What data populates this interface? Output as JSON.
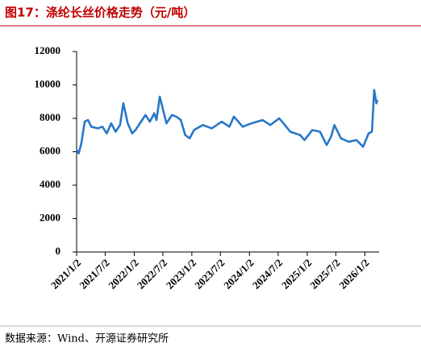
{
  "chart_data": {
    "type": "line",
    "title": "图17：涤纶长丝价格走势（元/吨）",
    "source": "数据来源：Wind、开源证券研究所",
    "x": [
      "2021/1/4",
      "2021/1/15",
      "2021/2/1",
      "2021/2/22",
      "2021/3/15",
      "2021/4/5",
      "2021/5/17",
      "2021/6/14",
      "2021/7/12",
      "2021/8/9",
      "2021/9/6",
      "2021/10/4",
      "2021/10/25",
      "2021/11/22",
      "2021/12/20",
      "2022/1/10",
      "2022/2/14",
      "2022/3/14",
      "2022/4/11",
      "2022/5/9",
      "2022/5/23",
      "2022/6/13",
      "2022/7/4",
      "2022/7/25",
      "2022/8/29",
      "2022/9/26",
      "2022/10/24",
      "2022/11/21",
      "2022/12/19",
      "2023/1/16",
      "2023/3/13",
      "2023/5/8",
      "2023/7/10",
      "2023/8/28",
      "2023/9/25",
      "2023/11/20",
      "2024/1/15",
      "2024/3/25",
      "2024/5/13",
      "2024/7/8",
      "2024/8/5",
      "2024/9/16",
      "2024/11/18",
      "2024/12/16",
      "2025/2/3",
      "2025/3/24",
      "2025/5/5",
      "2025/6/2",
      "2025/6/23",
      "2025/8/4",
      "2025/9/22",
      "2025/11/10",
      "2025/12/22",
      "2026/1/26",
      "2026/2/16",
      "2026/3/2",
      "2026/3/16",
      "2026/3/23"
    ],
    "series": [
      {
        "name": "涤纶长丝价格",
        "color": "#2878c8",
        "values": [
          6100,
          5900,
          6500,
          7800,
          7900,
          7500,
          7400,
          7500,
          7100,
          7700,
          7200,
          7600,
          8900,
          7700,
          7100,
          7300,
          7800,
          8200,
          7800,
          8300,
          7900,
          9300,
          8500,
          7700,
          8200,
          8100,
          7900,
          7000,
          6800,
          7300,
          7600,
          7400,
          7800,
          7500,
          8100,
          7500,
          7700,
          7900,
          7600,
          8000,
          7700,
          7200,
          7000,
          6700,
          7300,
          7200,
          6400,
          6900,
          7600,
          6800,
          6600,
          6700,
          6300,
          7100,
          7200,
          9700,
          8900,
          9100
        ]
      }
    ],
    "xlim": [
      "2021/1/2",
      "2026/4/2"
    ],
    "xticks": [
      "2021/1/2",
      "2021/7/2",
      "2022/1/2",
      "2022/7/2",
      "2023/1/2",
      "2023/7/2",
      "2024/1/2",
      "2024/7/2",
      "2025/1/2",
      "2025/7/2",
      "2026/1/2"
    ],
    "ylim": [
      0,
      12000
    ],
    "yticks": [
      0,
      2000,
      4000,
      6000,
      8000,
      10000,
      12000
    ],
    "grid": false
  }
}
